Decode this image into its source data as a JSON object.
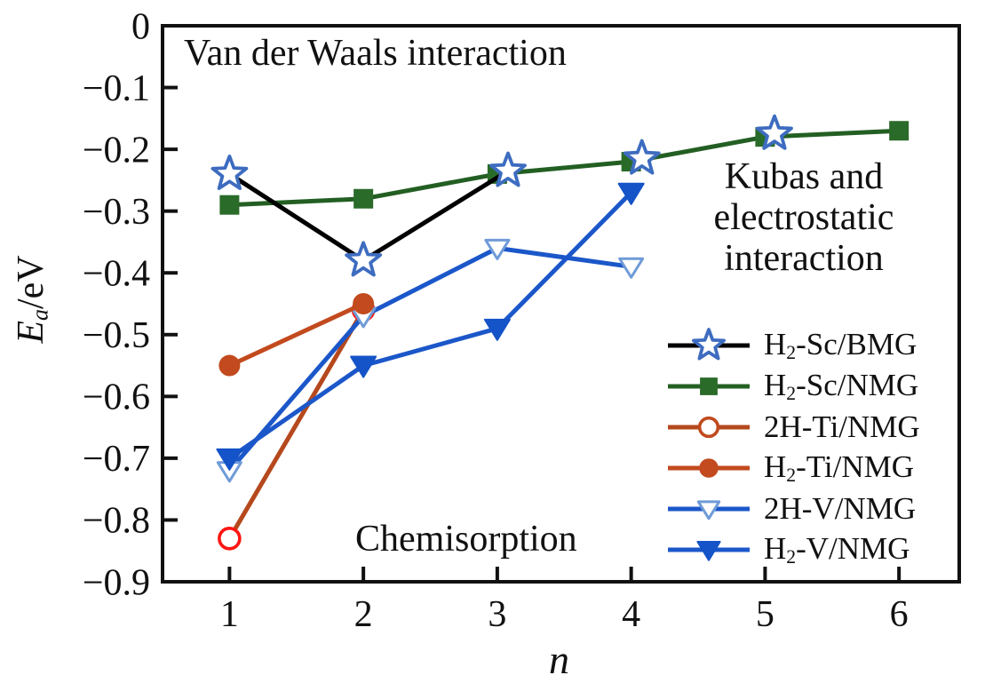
{
  "chart_data": {
    "type": "line",
    "title": "",
    "xlabel": "n",
    "ylabel_parts": [
      {
        "text": "E",
        "italic": true,
        "sub": false
      },
      {
        "text": "a",
        "italic": true,
        "sub": true
      },
      {
        "text": "/eV",
        "italic": false,
        "sub": false
      }
    ],
    "xlim": [
      0.5,
      6.45
    ],
    "ylim": [
      -0.9,
      0
    ],
    "grid": false,
    "legend_position": "lower right",
    "axis_color": "#111111",
    "xtick_values": [
      1,
      2,
      3,
      4,
      5,
      6
    ],
    "xtick_labels": [
      "1",
      "2",
      "3",
      "4",
      "5",
      "6"
    ],
    "ytick_values": [
      0,
      -0.1,
      -0.2,
      -0.3,
      -0.4,
      -0.5,
      -0.6,
      -0.7,
      -0.8,
      -0.9
    ],
    "ytick_labels": [
      "0",
      "−0.1",
      "−0.2",
      "−0.3",
      "−0.4",
      "−0.5",
      "−0.6",
      "−0.7",
      "−0.8",
      "−0.9"
    ],
    "annotations": {
      "van_der_waals": {
        "text": "Van der Waals interaction"
      },
      "kubas": {
        "text": "Kubas and\nelectrostatic\ninteraction"
      },
      "chemisorption": {
        "text": "Chemisorption"
      }
    },
    "series": [
      {
        "id": "h2-sc-bmg",
        "label_parts": [
          {
            "text": "H"
          },
          {
            "text": "2",
            "sub": true
          },
          {
            "text": "-Sc/BMG"
          }
        ],
        "line_color": "#000000",
        "marker": "star",
        "marker_fill": "#ffffff",
        "marker_stroke": "#3d6cc0",
        "x": [
          1,
          2,
          3,
          4,
          5
        ],
        "y": [
          -0.24,
          -0.38,
          -0.24,
          -0.22,
          -0.18
        ],
        "x_display": [
          1,
          2,
          3.08,
          4.08,
          5.07
        ],
        "y_display": [
          -0.24,
          -0.38,
          -0.235,
          -0.215,
          -0.175
        ],
        "line_end_index": 2,
        "z": 6
      },
      {
        "id": "h2-sc-nmg",
        "label_parts": [
          {
            "text": "H"
          },
          {
            "text": "2",
            "sub": true
          },
          {
            "text": "-Sc/NMG"
          }
        ],
        "line_color": "#235f23",
        "marker": "square",
        "marker_fill": "#2a6b2a",
        "x": [
          1,
          2,
          3,
          4,
          5,
          6
        ],
        "y": [
          -0.29,
          -0.28,
          -0.24,
          -0.22,
          -0.18,
          -0.17
        ],
        "z": 5
      },
      {
        "id": "2h-ti-nmg",
        "label_parts": [
          {
            "text": "2H-Ti/NMG"
          }
        ],
        "line_color": "#b5491d",
        "marker": "circle-open",
        "marker_fill": "#ffffff",
        "marker_stroke": "#fe1512",
        "legend_marker_stroke": "#c04a1e",
        "x": [
          1,
          2
        ],
        "y": [
          -0.83,
          -0.46
        ],
        "z": 1
      },
      {
        "id": "h2-ti-nmg",
        "label_parts": [
          {
            "text": "H"
          },
          {
            "text": "2",
            "sub": true
          },
          {
            "text": "-Ti/NMG"
          }
        ],
        "line_color": "#c24a1e",
        "marker": "circle",
        "marker_fill": "#c24a1e",
        "x": [
          1,
          2
        ],
        "y": [
          -0.55,
          -0.45
        ],
        "z": 4
      },
      {
        "id": "2h-v-nmg",
        "label_parts": [
          {
            "text": "2H-V/NMG"
          }
        ],
        "line_color": "#1b57c9",
        "marker": "triangle-down-open",
        "marker_fill": "#ffffff",
        "marker_stroke": "#6f9bd8",
        "x": [
          1,
          2,
          3,
          4
        ],
        "y": [
          -0.72,
          -0.47,
          -0.36,
          -0.39
        ],
        "z": 2
      },
      {
        "id": "h2-v-nmg",
        "label_parts": [
          {
            "text": "H"
          },
          {
            "text": "2",
            "sub": true
          },
          {
            "text": "-V/NMG"
          }
        ],
        "line_color": "#1b57c9",
        "marker": "triangle-down",
        "marker_fill": "#1453c8",
        "x": [
          1,
          2,
          3,
          4
        ],
        "y": [
          -0.7,
          -0.55,
          -0.49,
          -0.27
        ],
        "z": 3
      }
    ]
  }
}
